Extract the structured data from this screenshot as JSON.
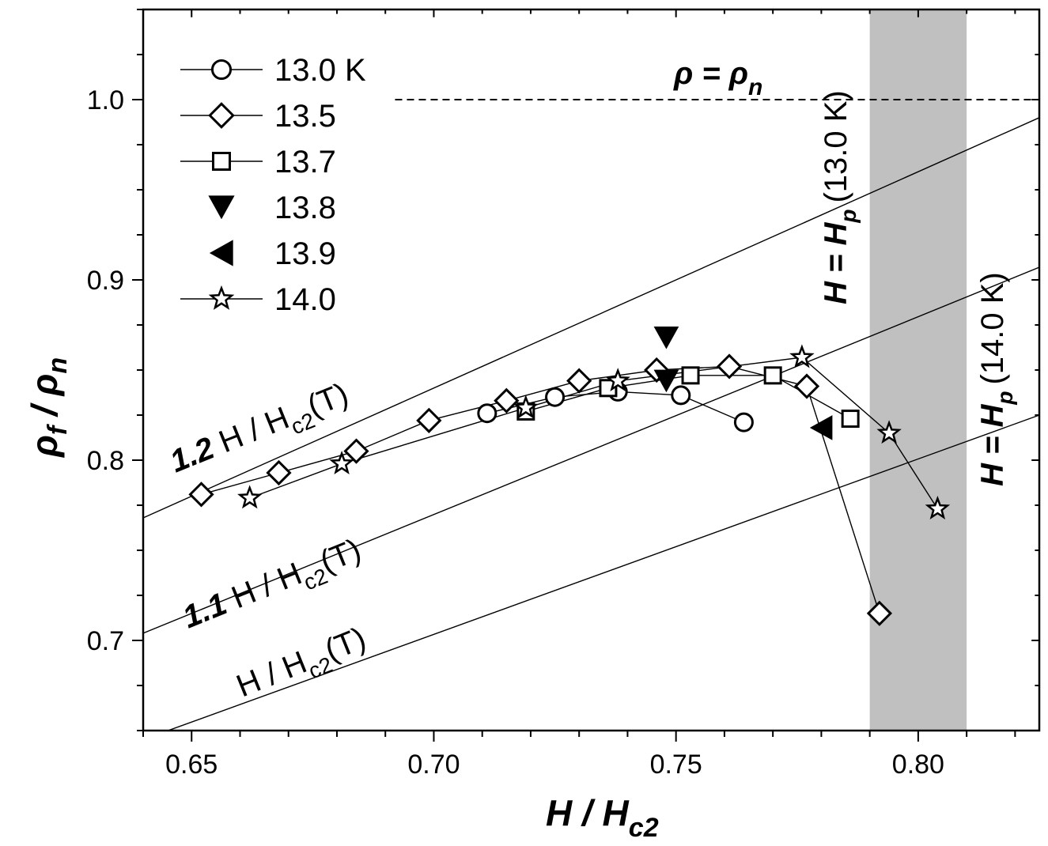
{
  "chart_data": {
    "type": "scatter",
    "xlabel": "H / H_c2",
    "ylabel": "ρ_f / ρ_n",
    "xlim": [
      0.64,
      0.825
    ],
    "ylim": [
      0.65,
      1.05
    ],
    "x_ticks": [
      0.65,
      0.7,
      0.75,
      0.8
    ],
    "x_tick_labels": [
      "0.65",
      "0.70",
      "0.75",
      "0.80"
    ],
    "y_ticks": [
      0.7,
      0.8,
      0.9,
      1.0
    ],
    "y_tick_labels": [
      "0.7",
      "0.8",
      "0.9",
      "1.0"
    ],
    "series": [
      {
        "name": "13.0 K",
        "marker": "circle",
        "connected": true,
        "x": [
          0.711,
          0.725,
          0.738,
          0.751,
          0.764
        ],
        "y": [
          0.826,
          0.835,
          0.838,
          0.836,
          0.821
        ]
      },
      {
        "name": "13.5",
        "marker": "diamond",
        "connected": true,
        "x": [
          0.652,
          0.668,
          0.684,
          0.699,
          0.715,
          0.73,
          0.746,
          0.761,
          0.777,
          0.792
        ],
        "y": [
          0.781,
          0.793,
          0.805,
          0.822,
          0.833,
          0.844,
          0.85,
          0.852,
          0.841,
          0.715
        ]
      },
      {
        "name": "13.7",
        "marker": "square",
        "connected": true,
        "x": [
          0.719,
          0.736,
          0.753,
          0.77,
          0.786
        ],
        "y": [
          0.827,
          0.84,
          0.847,
          0.847,
          0.823
        ]
      },
      {
        "name": "13.8",
        "marker": "triangle-down",
        "connected": false,
        "x": [
          0.748,
          0.748
        ],
        "y": [
          0.868,
          0.844
        ]
      },
      {
        "name": "13.9",
        "marker": "triangle-left",
        "connected": false,
        "x": [
          0.78
        ],
        "y": [
          0.818
        ]
      },
      {
        "name": "14.0",
        "marker": "star",
        "connected": true,
        "x": [
          0.662,
          0.681,
          0.719,
          0.738,
          0.776,
          0.794,
          0.804
        ],
        "y": [
          0.779,
          0.798,
          0.829,
          0.844,
          0.857,
          0.815,
          0.773
        ]
      }
    ],
    "reference_lines": [
      {
        "label": "H / H_c2(T)",
        "x": [
          0.64,
          0.825
        ],
        "y": [
          0.645,
          0.825
        ]
      },
      {
        "label": "1.1 H / H_c2(T)",
        "x": [
          0.64,
          0.825
        ],
        "y": [
          0.704,
          0.907
        ]
      },
      {
        "label": "1.2 H / H_c2(T)",
        "x": [
          0.64,
          0.825
        ],
        "y": [
          0.768,
          0.99
        ]
      },
      {
        "label": "ρ = ρ_n",
        "x": [
          0.692,
          0.825
        ],
        "y": [
          1.0,
          1.0
        ],
        "style": "dashed"
      }
    ],
    "shaded_region": {
      "x": [
        0.79,
        0.81
      ],
      "color": "#c0c0c0"
    },
    "annotations": {
      "rho_eq": "ρ = ρ_n",
      "hp13": "H = H_p (13.0 K)",
      "hp14": "H = H_p (14.0 K)",
      "line_10": "H / H_c2(T)",
      "line_11": "1.1 H / H_c2(T)",
      "line_12": "1.2 H / H_c2(T)"
    },
    "legend_position": "top-left",
    "grid": false
  }
}
